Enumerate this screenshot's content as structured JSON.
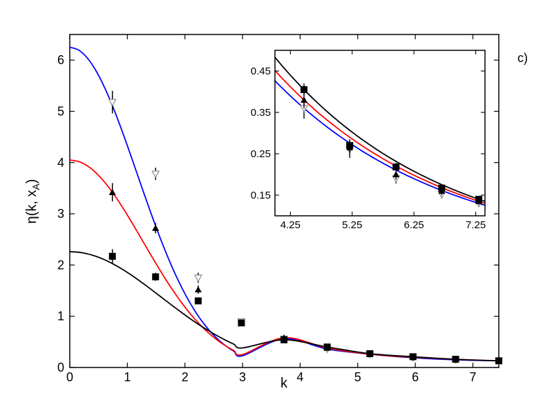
{
  "chart_data": [
    {
      "id": "main",
      "type": "line",
      "panel_label": "c)",
      "xlabel": "k",
      "ylabel": "η(k, x",
      "ylabel_sub": "A",
      "ylabel_close": ")",
      "xlim": [
        0,
        7.45
      ],
      "ylim": [
        0,
        6.5
      ],
      "xticks": [
        0,
        1,
        2,
        3,
        4,
        5,
        6,
        7
      ],
      "yticks": [
        0,
        1,
        2,
        3,
        4,
        5,
        6
      ],
      "series": [
        {
          "color": "#0000ff",
          "amplitude": 6.25,
          "width": 1.65,
          "points": [
            {
              "x": 0.74,
              "y": 5.18,
              "err": 0.22
            },
            {
              "x": 1.49,
              "y": 3.78,
              "err": 0.12
            },
            {
              "x": 2.23,
              "y": 1.75,
              "err": 0.1
            },
            {
              "x": 2.98,
              "y": 0.9,
              "err": 0.05
            },
            {
              "x": 3.72,
              "y": 0.56,
              "err": 0.04
            },
            {
              "x": 4.47,
              "y": 0.36,
              "err": 0.04
            },
            {
              "x": 5.21,
              "y": 0.26,
              "err": 0.04
            },
            {
              "x": 5.96,
              "y": 0.19,
              "err": 0.03
            },
            {
              "x": 6.7,
              "y": 0.15,
              "err": 0.03
            },
            {
              "x": 7.45,
              "y": 0.13,
              "err": 0.03
            }
          ],
          "marker": "triangle-down-open",
          "marker_color": "#808080"
        },
        {
          "color": "#ff0000",
          "amplitude": 4.05,
          "width": 1.8,
          "points": [
            {
              "x": 0.74,
              "y": 3.42,
              "err": 0.18
            },
            {
              "x": 1.49,
              "y": 2.72,
              "err": 0.1
            },
            {
              "x": 2.23,
              "y": 1.52,
              "err": 0.08
            },
            {
              "x": 2.98,
              "y": 0.88,
              "err": 0.05
            },
            {
              "x": 3.72,
              "y": 0.58,
              "err": 0.04
            },
            {
              "x": 4.47,
              "y": 0.38,
              "err": 0.04
            },
            {
              "x": 5.21,
              "y": 0.26,
              "err": 0.04
            },
            {
              "x": 5.96,
              "y": 0.2,
              "err": 0.03
            },
            {
              "x": 6.7,
              "y": 0.16,
              "err": 0.03
            },
            {
              "x": 7.45,
              "y": 0.13,
              "err": 0.03
            }
          ],
          "marker": "triangle-up-filled",
          "marker_color": "#000000"
        },
        {
          "color": "#000000",
          "amplitude": 2.26,
          "width": 2.25,
          "points": [
            {
              "x": 0.74,
              "y": 2.17,
              "err": 0.14
            },
            {
              "x": 1.49,
              "y": 1.77,
              "err": 0.08
            },
            {
              "x": 2.23,
              "y": 1.3,
              "err": 0.05
            },
            {
              "x": 2.98,
              "y": 0.87,
              "err": 0.04
            },
            {
              "x": 3.72,
              "y": 0.54,
              "err": 0.04
            },
            {
              "x": 4.47,
              "y": 0.4,
              "err": 0.04
            },
            {
              "x": 5.21,
              "y": 0.27,
              "err": 0.03
            },
            {
              "x": 5.96,
              "y": 0.21,
              "err": 0.03
            },
            {
              "x": 6.7,
              "y": 0.16,
              "err": 0.03
            },
            {
              "x": 7.45,
              "y": 0.13,
              "err": 0.03
            }
          ],
          "marker": "square-filled",
          "marker_color": "#000000"
        }
      ]
    },
    {
      "id": "inset",
      "type": "line",
      "xlim": [
        4.0,
        7.4
      ],
      "ylim": [
        0.1,
        0.5
      ],
      "xticks": [
        4.25,
        5.25,
        6.25,
        7.25
      ],
      "xtick_labels": [
        "4.25",
        "5.25",
        "6.25",
        "7.25"
      ],
      "yticks": [
        0.15,
        0.25,
        0.35,
        0.45
      ],
      "ytick_labels": [
        "0.15",
        "0.25",
        "0.35",
        "0.45"
      ],
      "series": [
        {
          "color": "#0000ff",
          "points": [
            {
              "x": 4.47,
              "y": 0.36,
              "err": 0.025
            },
            {
              "x": 5.21,
              "y": 0.26,
              "err": 0.02
            },
            {
              "x": 5.96,
              "y": 0.19,
              "err": 0.012
            },
            {
              "x": 6.7,
              "y": 0.152,
              "err": 0.01
            },
            {
              "x": 7.3,
              "y": 0.13,
              "err": 0.008
            }
          ],
          "marker": "triangle-down-open",
          "marker_color": "#808080"
        },
        {
          "color": "#ff0000",
          "points": [
            {
              "x": 4.47,
              "y": 0.38,
              "err": 0.02
            },
            {
              "x": 5.21,
              "y": 0.265,
              "err": 0.02
            },
            {
              "x": 5.96,
              "y": 0.2,
              "err": 0.012
            },
            {
              "x": 6.7,
              "y": 0.16,
              "err": 0.01
            },
            {
              "x": 7.3,
              "y": 0.135,
              "err": 0.008
            }
          ],
          "marker": "triangle-up-filled",
          "marker_color": "#000000"
        },
        {
          "color": "#000000",
          "points": [
            {
              "x": 4.47,
              "y": 0.405,
              "err": 0.015
            },
            {
              "x": 5.21,
              "y": 0.27,
              "err": 0.015
            },
            {
              "x": 5.96,
              "y": 0.218,
              "err": 0.01
            },
            {
              "x": 6.7,
              "y": 0.167,
              "err": 0.008
            },
            {
              "x": 7.3,
              "y": 0.14,
              "err": 0.008
            }
          ],
          "marker": "square-filled",
          "marker_color": "#000000"
        }
      ]
    }
  ]
}
